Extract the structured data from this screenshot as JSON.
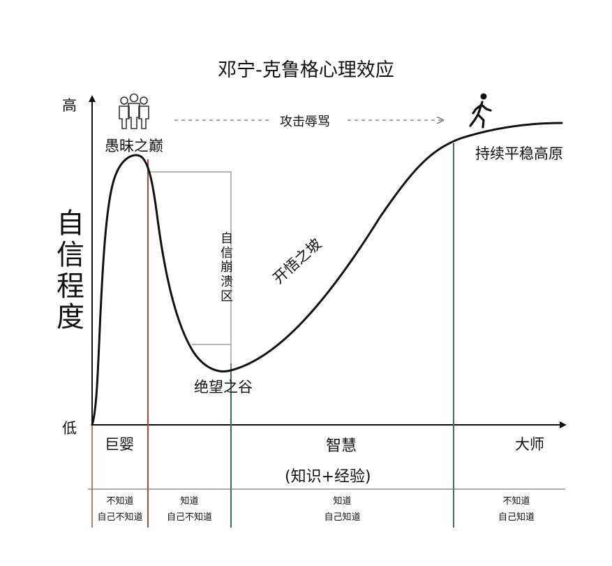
{
  "title": "邓宁-克鲁格心理效应",
  "y_axis": {
    "label": "自信程度",
    "high": "高",
    "low": "低"
  },
  "x_axis": {
    "start": "巨婴",
    "middle": "智慧",
    "end": "大师",
    "sub": "(知识+经验)"
  },
  "annotations": {
    "peak": "愚昧之巅",
    "arrow": "攻击辱骂",
    "collapse_zone": "自信崩溃区",
    "valley": "绝望之谷",
    "slope": "开悟之坡",
    "plateau": "持续平稳高原"
  },
  "icons": {
    "group": "group-of-people-icon",
    "walker": "walking-person-icon"
  },
  "colors": {
    "red_line": "#b5433a",
    "teal_line": "#3f6b6b",
    "curve": "#111111",
    "bracket": "#8a8a8a"
  },
  "stages": [
    {
      "line1": "不知道",
      "line2": "自己不知道"
    },
    {
      "line1": "知道",
      "line2": "自己不知道"
    },
    {
      "line1": "知道",
      "line2": "自己知道"
    },
    {
      "line1": "不知道",
      "line2": "自己知道"
    }
  ]
}
